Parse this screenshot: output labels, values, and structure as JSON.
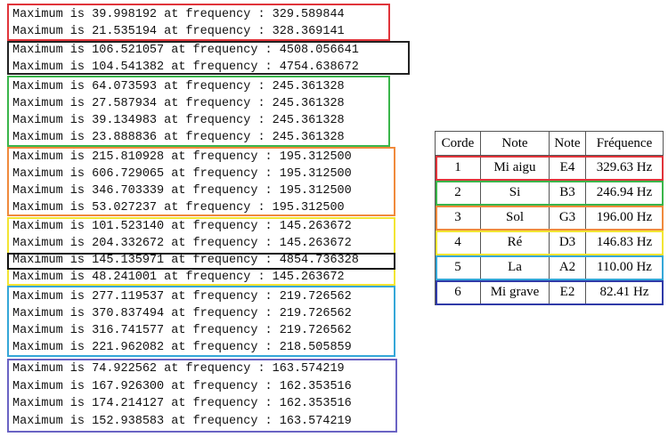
{
  "frequency_log": {
    "groups": [
      {
        "color": "#e0343a",
        "lines": [
          "Maximum is 39.998192 at frequency : 329.589844",
          "Maximum is 21.535194 at frequency : 328.369141"
        ]
      },
      {
        "color": "#222222",
        "lines": [
          "Maximum is 106.521057 at frequency : 4508.056641",
          "Maximum is 104.541382 at frequency : 4754.638672"
        ]
      },
      {
        "color": "#3ab54a",
        "lines": [
          "Maximum is 64.073593 at frequency : 245.361328",
          "Maximum is 27.587934 at frequency : 245.361328",
          "Maximum is 39.134983 at frequency : 245.361328",
          "Maximum is 23.888836 at frequency : 245.361328"
        ]
      },
      {
        "color": "#f08a3c",
        "lines": [
          "Maximum is 215.810928 at frequency : 195.312500",
          "Maximum is 606.729065 at frequency : 195.312500",
          "Maximum is 346.703339 at frequency : 195.312500",
          "Maximum is 53.027237 at frequency : 195.312500"
        ]
      },
      {
        "color": "#f2e533",
        "lines": [
          "Maximum is 101.523140 at frequency : 145.263672",
          "Maximum is 204.332672 at frequency : 145.263672",
          "Maximum is 145.135971 at frequency : 4854.736328",
          "Maximum is 48.241001 at frequency : 145.263672"
        ]
      },
      {
        "color": "#34a7d8",
        "lines": [
          "Maximum is 277.119537 at frequency : 219.726562",
          "Maximum is 370.837494 at frequency : 219.726562",
          "Maximum is 316.741577 at frequency : 219.726562",
          "Maximum is 221.962082 at frequency : 218.505859"
        ]
      },
      {
        "color": "#6a63c4",
        "lines": [
          "Maximum is 74.922562 at frequency : 163.574219",
          "Maximum is 167.926300 at frequency : 162.353516",
          "Maximum is 174.214127 at frequency : 162.353516",
          "Maximum is 152.938583 at frequency : 163.574219"
        ]
      }
    ]
  },
  "notes_table": {
    "headers": {
      "corde": "Corde",
      "note_name": "Note",
      "note_code": "Note",
      "frequence": "Fréquence"
    },
    "rows": [
      {
        "corde": "1",
        "note_name": "Mi aigu",
        "note_code": "E4",
        "frequence": "329.63 Hz",
        "color": "#e0343a"
      },
      {
        "corde": "2",
        "note_name": "Si",
        "note_code": "B3",
        "frequence": "246.94 Hz",
        "color": "#3ab54a"
      },
      {
        "corde": "3",
        "note_name": "Sol",
        "note_code": "G3",
        "frequence": "196.00 Hz",
        "color": "#f08a3c"
      },
      {
        "corde": "4",
        "note_name": "Ré",
        "note_code": "D3",
        "frequence": "146.83 Hz",
        "color": "#f2e533"
      },
      {
        "corde": "5",
        "note_name": "La",
        "note_code": "A2",
        "frequence": "110.00 Hz",
        "color": "#34a7d8"
      },
      {
        "corde": "6",
        "note_name": "Mi grave",
        "note_code": "E2",
        "frequence": "82.41 Hz",
        "color": "#2f3aa8"
      }
    ]
  }
}
